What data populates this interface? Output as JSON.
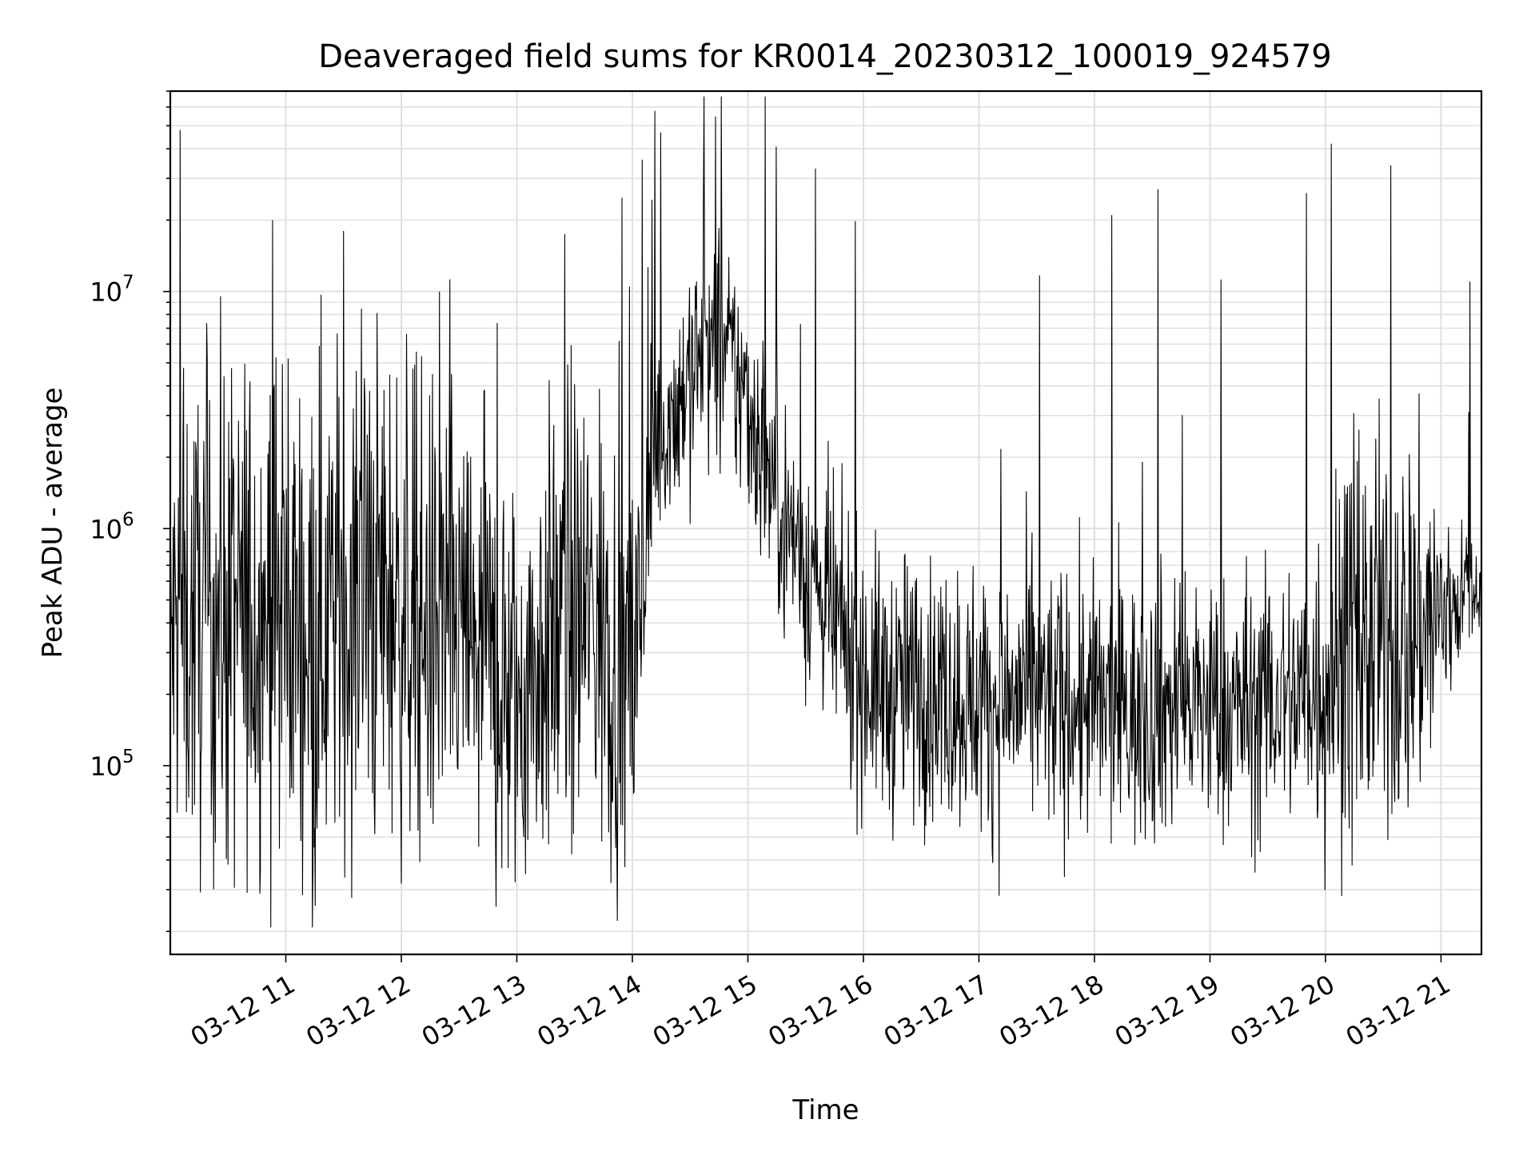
{
  "chart_data": {
    "type": "line",
    "title": "Deaveraged field sums for KR0014_20230312_100019_924579",
    "xlabel": "Time",
    "ylabel": "Peak ADU - average",
    "yscale": "log",
    "ylim": [
      16000,
      70000000
    ],
    "xlim": [
      "2023-03-12 10:00",
      "2023-03-12 21:21"
    ],
    "grid": true,
    "line_color": "#000000",
    "grid_color": "#e0e0e0",
    "x_ticks": [
      {
        "at": "2023-03-12 11:00",
        "label": "03-12 11"
      },
      {
        "at": "2023-03-12 12:00",
        "label": "03-12 12"
      },
      {
        "at": "2023-03-12 13:00",
        "label": "03-12 13"
      },
      {
        "at": "2023-03-12 14:00",
        "label": "03-12 14"
      },
      {
        "at": "2023-03-12 15:00",
        "label": "03-12 15"
      },
      {
        "at": "2023-03-12 16:00",
        "label": "03-12 16"
      },
      {
        "at": "2023-03-12 17:00",
        "label": "03-12 17"
      },
      {
        "at": "2023-03-12 18:00",
        "label": "03-12 18"
      },
      {
        "at": "2023-03-12 19:00",
        "label": "03-12 19"
      },
      {
        "at": "2023-03-12 20:00",
        "label": "03-12 20"
      },
      {
        "at": "2023-03-12 21:00",
        "label": "03-12 21"
      }
    ],
    "y_ticks": [
      {
        "value": 100000,
        "base": "10",
        "exp": "5"
      },
      {
        "value": 1000000,
        "base": "10",
        "exp": "6"
      },
      {
        "value": 10000000,
        "base": "10",
        "exp": "7"
      }
    ],
    "series": [
      {
        "x": [
          "2023-03-12 10:00",
          "2023-03-12 10:12",
          "2023-03-12 10:24",
          "2023-03-12 10:36",
          "2023-03-12 10:48",
          "2023-03-12 11:00",
          "2023-03-12 11:12",
          "2023-03-12 11:24",
          "2023-03-12 11:36",
          "2023-03-12 11:48",
          "2023-03-12 12:00",
          "2023-03-12 12:12",
          "2023-03-12 12:24",
          "2023-03-12 12:36",
          "2023-03-12 12:48",
          "2023-03-12 13:00",
          "2023-03-12 13:12",
          "2023-03-12 13:24",
          "2023-03-12 13:36",
          "2023-03-12 13:48",
          "2023-03-12 14:00",
          "2023-03-12 14:12",
          "2023-03-12 14:24",
          "2023-03-12 14:36",
          "2023-03-12 14:48",
          "2023-03-12 15:00",
          "2023-03-12 15:12",
          "2023-03-12 15:24",
          "2023-03-12 15:36",
          "2023-03-12 15:48",
          "2023-03-12 16:00",
          "2023-03-12 16:12",
          "2023-03-12 16:24",
          "2023-03-12 16:36",
          "2023-03-12 16:48",
          "2023-03-12 17:00",
          "2023-03-12 17:12",
          "2023-03-12 17:24",
          "2023-03-12 17:36",
          "2023-03-12 17:48",
          "2023-03-12 18:00",
          "2023-03-12 18:12",
          "2023-03-12 18:24",
          "2023-03-12 18:36",
          "2023-03-12 18:48",
          "2023-03-12 19:00",
          "2023-03-12 19:12",
          "2023-03-12 19:24",
          "2023-03-12 19:36",
          "2023-03-12 19:48",
          "2023-03-12 20:00",
          "2023-03-12 20:12",
          "2023-03-12 20:24",
          "2023-03-12 20:36",
          "2023-03-12 20:48",
          "2023-03-12 21:00",
          "2023-03-12 21:12",
          "2023-03-12 21:20"
        ],
        "y": [
          350000,
          400000,
          450000,
          400000,
          500000,
          450000,
          400000,
          450000,
          500000,
          550000,
          450000,
          400000,
          380000,
          330000,
          250000,
          180000,
          300000,
          400000,
          450000,
          350000,
          200000,
          2300000,
          3500000,
          5500000,
          5500000,
          3500000,
          1600000,
          900000,
          550000,
          350000,
          250000,
          200000,
          220000,
          210000,
          200000,
          190000,
          180000,
          200000,
          190000,
          180000,
          180000,
          170000,
          170000,
          180000,
          180000,
          180000,
          170000,
          180000,
          190000,
          200000,
          240000,
          300000,
          320000,
          350000,
          380000,
          420000,
          560000,
          580000
        ],
        "noise_spread": [
          0.45,
          0.5,
          0.55,
          0.55,
          0.55,
          0.5,
          0.55,
          0.55,
          0.55,
          0.55,
          0.5,
          0.5,
          0.5,
          0.5,
          0.5,
          0.45,
          0.45,
          0.5,
          0.5,
          0.5,
          0.4,
          0.2,
          0.25,
          0.25,
          0.25,
          0.25,
          0.25,
          0.25,
          0.25,
          0.28,
          0.28,
          0.28,
          0.28,
          0.28,
          0.28,
          0.28,
          0.28,
          0.28,
          0.28,
          0.28,
          0.28,
          0.28,
          0.28,
          0.28,
          0.28,
          0.28,
          0.28,
          0.28,
          0.28,
          0.28,
          0.4,
          0.42,
          0.42,
          0.42,
          0.4,
          0.3,
          0.12,
          0.1
        ],
        "spikes": [
          {
            "x": "2023-03-12 10:05",
            "y": 48000000
          },
          {
            "x": "2023-03-12 10:53",
            "y": 20000000
          },
          {
            "x": "2023-03-12 11:30",
            "y": 18000000
          },
          {
            "x": "2023-03-12 13:25",
            "y": 17500000
          },
          {
            "x": "2023-03-12 14:05",
            "y": 36000000
          },
          {
            "x": "2023-03-12 14:37",
            "y": 23000000
          },
          {
            "x": "2023-03-12 15:35",
            "y": 33000000
          },
          {
            "x": "2023-03-12 18:09",
            "y": 21000000
          },
          {
            "x": "2023-03-12 18:33",
            "y": 27000000
          },
          {
            "x": "2023-03-12 19:50",
            "y": 26000000
          },
          {
            "x": "2023-03-12 20:03",
            "y": 42000000
          },
          {
            "x": "2023-03-12 20:34",
            "y": 34000000
          },
          {
            "x": "2023-03-12 21:15",
            "y": 11000000
          }
        ]
      }
    ]
  }
}
